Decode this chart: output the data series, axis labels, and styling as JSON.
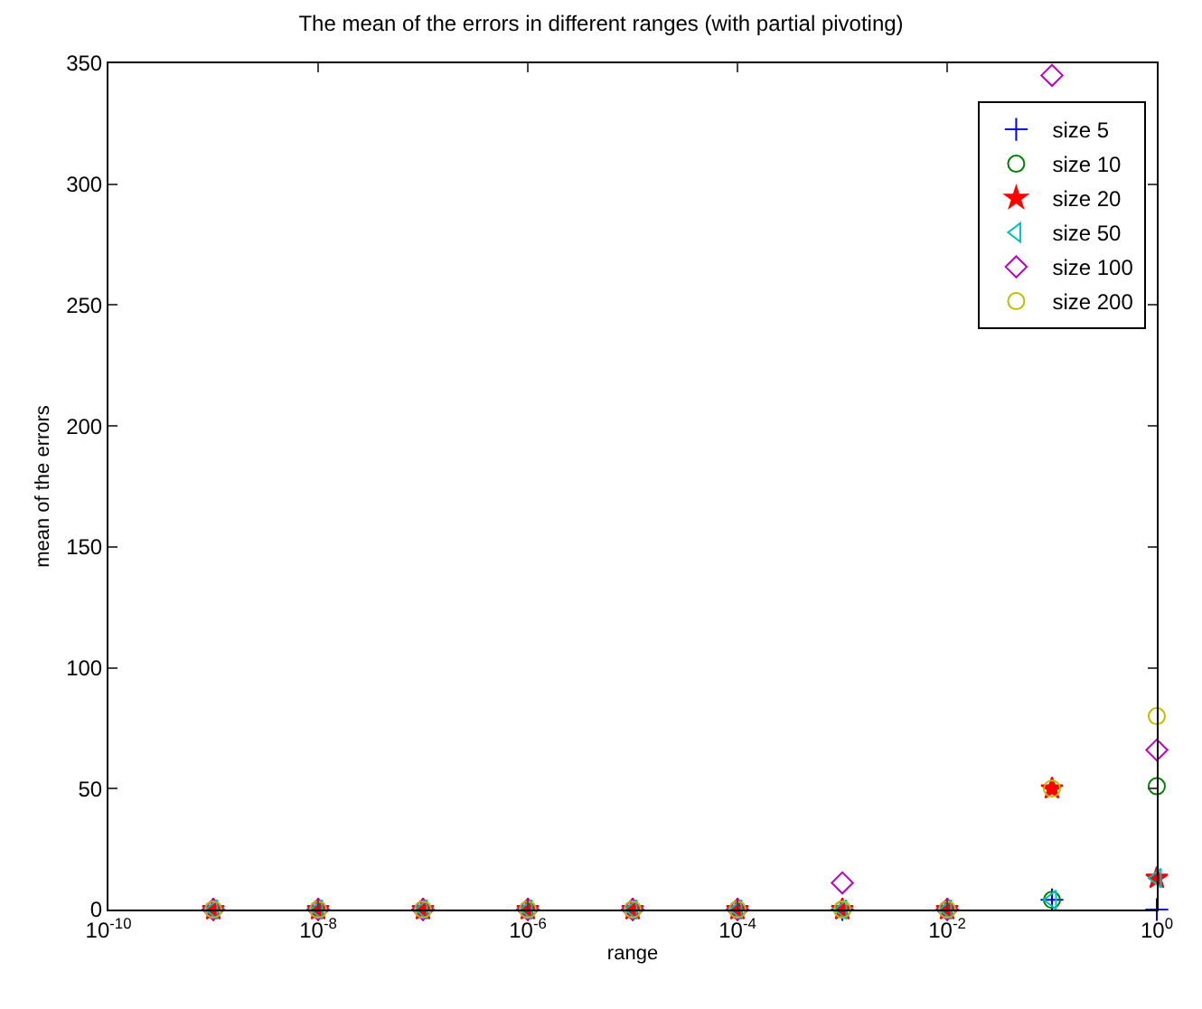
{
  "chart_data": {
    "type": "scatter",
    "title": "The mean of the errors in different ranges (with partial pivoting)",
    "xlabel": "range",
    "ylabel": "mean of the errors",
    "log": "x",
    "x": [
      1e-09,
      1e-08,
      1e-07,
      1e-06,
      1e-05,
      0.0001,
      0.001,
      0.01,
      0.1,
      1
    ],
    "series": [
      {
        "name": "size 5",
        "color": "#0000ff",
        "marker": "cross",
        "values": [
          0,
          0,
          0,
          0,
          0,
          0,
          0,
          0,
          4,
          0
        ]
      },
      {
        "name": "size 10",
        "color": "#008000",
        "marker": "circle",
        "values": [
          0,
          0,
          0,
          0,
          0,
          0,
          0,
          0,
          4,
          51
        ]
      },
      {
        "name": "size 20",
        "color": "#ff0000",
        "marker": "star",
        "values": [
          0,
          0,
          0,
          0,
          0,
          0,
          0,
          0,
          50,
          13
        ]
      },
      {
        "name": "size 50",
        "color": "#00bfbf",
        "marker": "triangle",
        "values": [
          0,
          0,
          0,
          0,
          0,
          0,
          0,
          0,
          4,
          13
        ]
      },
      {
        "name": "size 100",
        "color": "#bf00bf",
        "marker": "diamond",
        "values": [
          0,
          0,
          0,
          0,
          0,
          0,
          11,
          0,
          345,
          66
        ]
      },
      {
        "name": "size 200",
        "color": "#bfbf00",
        "marker": "circle",
        "values": [
          0,
          0,
          0,
          0,
          0,
          0,
          0,
          0,
          50,
          80
        ]
      }
    ],
    "xlim": [
      1e-10,
      1
    ],
    "xticks": [
      {
        "value": 1e-10,
        "label": "10$^{-10}$"
      },
      {
        "value": 1e-08,
        "label": "10$^{-8}$"
      },
      {
        "value": 1e-06,
        "label": "10$^{-6}$"
      },
      {
        "value": 0.0001,
        "label": "10$^{-4}$"
      },
      {
        "value": 0.01,
        "label": "10$^{-2}$"
      },
      {
        "value": 1,
        "label": "10$^{0}$"
      }
    ],
    "ylim": [
      0,
      350
    ],
    "yticks": [
      0,
      50,
      100,
      150,
      200,
      250,
      300,
      350
    ],
    "grid": false,
    "legend": "top right"
  }
}
